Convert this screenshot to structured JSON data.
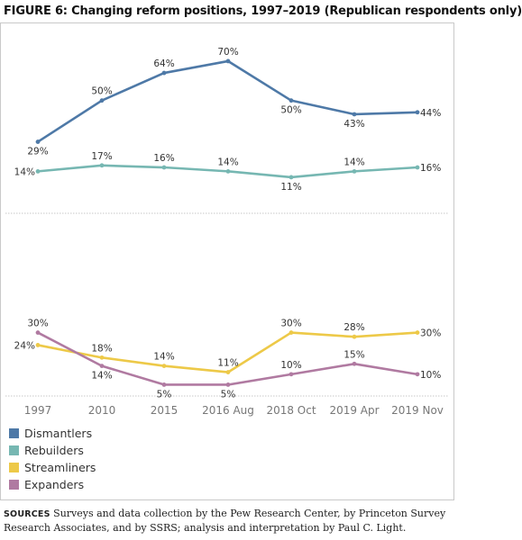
{
  "figure": {
    "title": "FIGURE 6: Changing reform positions, 1997–2019 (Republican respondents only)"
  },
  "chart_data": [
    {
      "type": "line",
      "categories": [
        "1997",
        "2010",
        "2015",
        "2016 Aug",
        "2018 Oct",
        "2019 Apr",
        "2019 Nov"
      ],
      "ylim": [
        0,
        75
      ],
      "grid": false,
      "series": [
        {
          "name": "Dismantlers",
          "color": "#4e79a7",
          "values": [
            29,
            50,
            64,
            70,
            50,
            43,
            44
          ],
          "labels": [
            "29%",
            "50%",
            "64%",
            "70%",
            "50%",
            "43%",
            "44%"
          ]
        },
        {
          "name": "Rebuilders",
          "color": "#76b7b2",
          "values": [
            14,
            17,
            16,
            14,
            11,
            14,
            16
          ],
          "labels": [
            "14%",
            "17%",
            "16%",
            "14%",
            "11%",
            "14%",
            "16%"
          ]
        }
      ]
    },
    {
      "type": "line",
      "categories": [
        "1997",
        "2010",
        "2015",
        "2016 Aug",
        "2018 Oct",
        "2019 Apr",
        "2019 Nov"
      ],
      "ylim": [
        0,
        35
      ],
      "grid": false,
      "series": [
        {
          "name": "Streamliners",
          "color": "#edc948",
          "values": [
            24,
            18,
            14,
            11,
            30,
            28,
            30
          ],
          "labels": [
            "24%",
            "18%",
            "14%",
            "11%",
            "30%",
            "28%",
            "30%"
          ]
        },
        {
          "name": "Expanders",
          "color": "#b07aa1",
          "values": [
            30,
            14,
            5,
            5,
            10,
            15,
            10
          ],
          "labels": [
            "30%",
            "14%",
            "5%",
            "5%",
            "10%",
            "15%",
            "10%"
          ]
        }
      ]
    }
  ],
  "legend": [
    {
      "label": "Dismantlers",
      "color": "#4e79a7"
    },
    {
      "label": "Rebuilders",
      "color": "#76b7b2"
    },
    {
      "label": "Streamliners",
      "color": "#edc948"
    },
    {
      "label": "Expanders",
      "color": "#b07aa1"
    }
  ],
  "sources": {
    "label": "SOURCES",
    "text": "Surveys and data collection by the Pew Research Center, by Princeton Survey Research Associates, and by SSRS; analysis and interpretation by Paul C. Light."
  }
}
